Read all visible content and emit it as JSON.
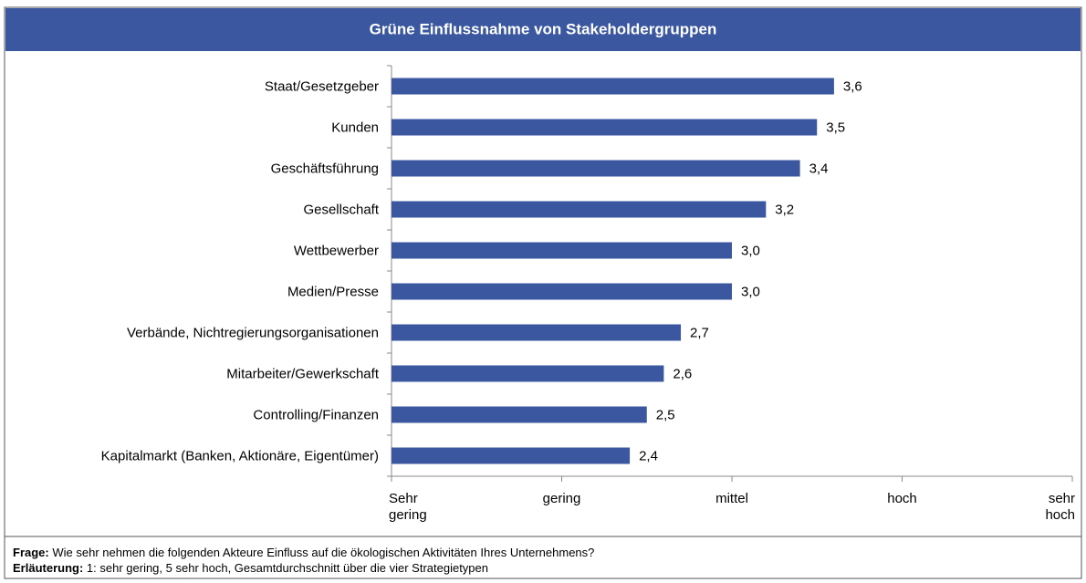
{
  "chart_data": {
    "type": "bar",
    "orientation": "horizontal",
    "title": "Grüne Einflussnahme von Stakeholdergruppen",
    "categories": [
      "Staat/Gesetzgeber",
      "Kunden",
      "Geschäftsführung",
      "Gesellschaft",
      "Wettbewerber",
      "Medien/Presse",
      "Verbände, Nichtregierungsorganisationen",
      "Mitarbeiter/Gewerkschaft",
      "Controlling/Finanzen",
      "Kapitalmarkt (Banken, Aktionäre, Eigentümer)"
    ],
    "values": [
      3.6,
      3.5,
      3.4,
      3.2,
      3.0,
      3.0,
      2.7,
      2.6,
      2.5,
      2.4
    ],
    "value_labels": [
      "3,6",
      "3,5",
      "3,4",
      "3,2",
      "3,0",
      "3,0",
      "2,7",
      "2,6",
      "2,5",
      "2,4"
    ],
    "color": "#3a57a0",
    "xlim": [
      1,
      5
    ],
    "xticks": [
      {
        "value": 1,
        "label": "Sehr gering"
      },
      {
        "value": 2,
        "label": "gering"
      },
      {
        "value": 3,
        "label": "mittel"
      },
      {
        "value": 4,
        "label": "hoch"
      },
      {
        "value": 5,
        "label": "sehr hoch"
      }
    ],
    "notes": [
      {
        "label": "Frage:",
        "text": "Wie sehr nehmen die folgenden Akteure Einfluss auf die ökologischen Aktivitäten Ihres Unternehmens?"
      },
      {
        "label": "Erläuterung:",
        "text": "1: sehr gering, 5 sehr hoch, Gesamtdurchschnitt über die vier Strategietypen"
      }
    ]
  }
}
